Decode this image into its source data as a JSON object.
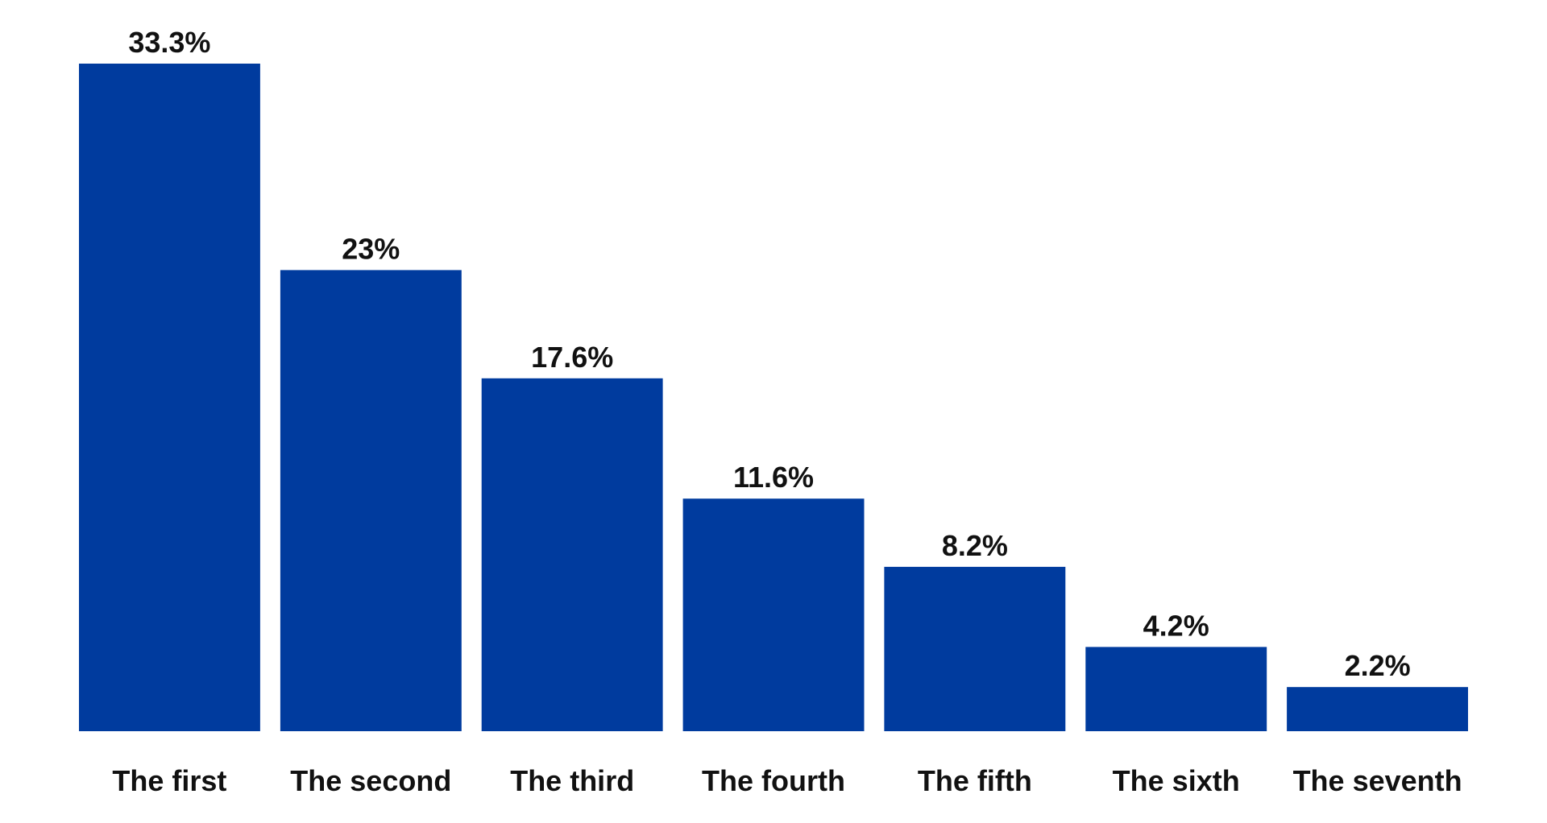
{
  "chart_data": {
    "type": "bar",
    "categories": [
      "The first",
      "The second",
      "The third",
      "The fourth",
      "The fifth",
      "The sixth",
      "The seventh"
    ],
    "values": [
      33.3,
      23,
      17.6,
      11.6,
      8.2,
      4.2,
      2.2
    ],
    "value_labels": [
      "33.3%",
      "23%",
      "17.6%",
      "11.6%",
      "8.2%",
      "4.2%",
      "2.2%"
    ],
    "title": "",
    "xlabel": "",
    "ylabel": "",
    "ylim": [
      0,
      33.3
    ],
    "grid": false,
    "bar_color": "#003b9e",
    "label_color": "#111111"
  }
}
